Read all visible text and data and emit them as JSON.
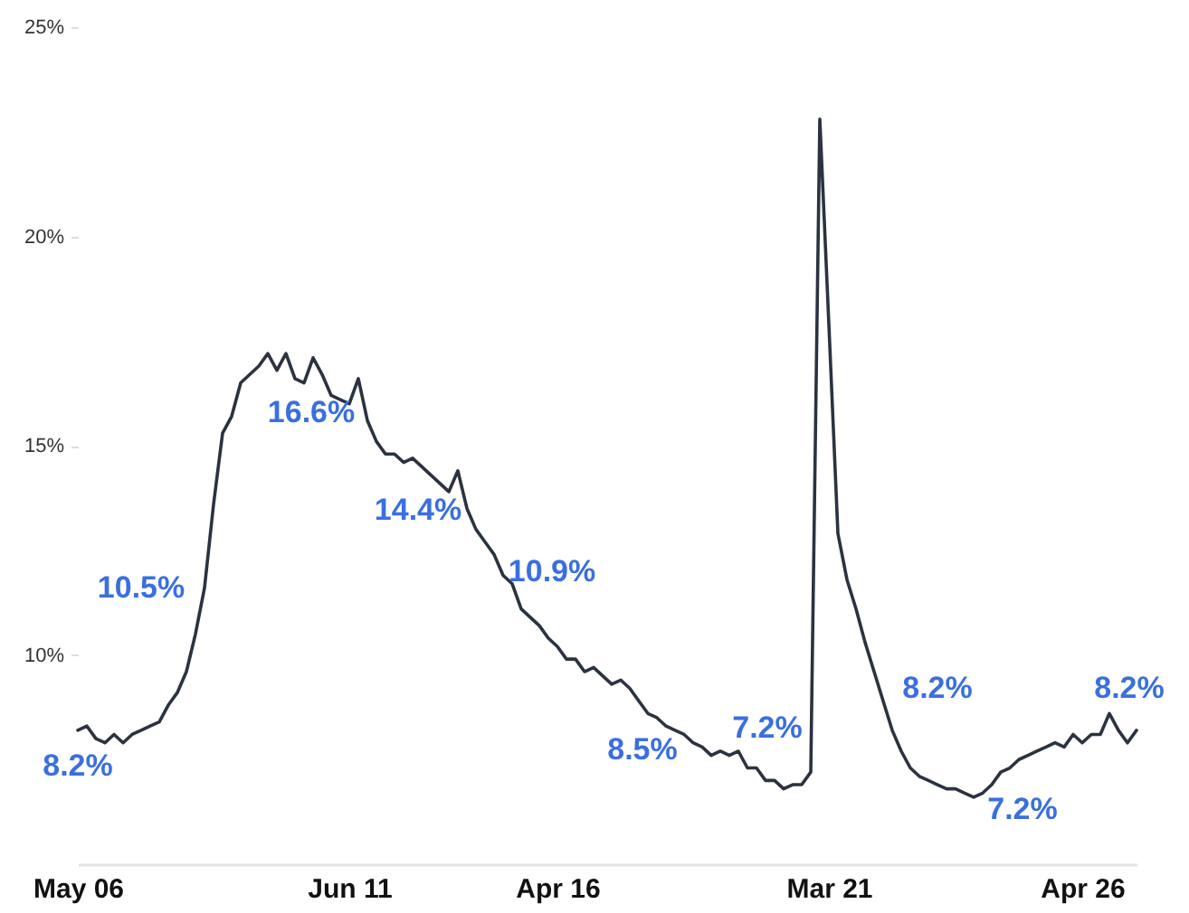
{
  "chart_data": {
    "type": "line",
    "categories": [
      "May 06",
      null,
      null,
      null,
      null,
      null,
      null,
      null,
      null,
      null,
      null,
      null,
      null,
      null,
      null,
      null,
      null,
      null,
      null,
      null,
      null,
      null,
      null,
      null,
      null,
      null,
      null,
      null,
      null,
      null,
      "Jun 11",
      null,
      null,
      null,
      null,
      null,
      null,
      null,
      null,
      null,
      null,
      null,
      null,
      null,
      null,
      null,
      null,
      null,
      null,
      null,
      null,
      null,
      null,
      "Apr 16",
      null,
      null,
      null,
      null,
      null,
      null,
      null,
      null,
      null,
      null,
      null,
      null,
      null,
      null,
      null,
      null,
      null,
      null,
      null,
      null,
      null,
      null,
      null,
      null,
      null,
      null,
      null,
      null,
      null,
      "Mar 21",
      null,
      null,
      null,
      null,
      null,
      null,
      null,
      null,
      null,
      null,
      null,
      null,
      null,
      null,
      null,
      null,
      null,
      null,
      null,
      null,
      null,
      null,
      null,
      null,
      null,
      null,
      null,
      "Apr 26",
      null,
      null,
      null,
      null,
      null,
      null
    ],
    "series": [
      {
        "color": "#2b3340",
        "values": [
          8.2,
          8.3,
          8.0,
          7.9,
          8.1,
          7.9,
          8.1,
          8.2,
          8.3,
          8.4,
          8.8,
          9.1,
          9.6,
          10.5,
          11.6,
          13.6,
          15.3,
          15.7,
          16.5,
          16.7,
          16.9,
          17.2,
          16.8,
          17.2,
          16.6,
          16.5,
          17.1,
          16.7,
          16.2,
          16.1,
          16.0,
          16.6,
          15.6,
          15.1,
          14.8,
          14.8,
          14.6,
          14.7,
          14.5,
          14.3,
          14.1,
          13.9,
          14.4,
          13.5,
          13.0,
          12.7,
          12.4,
          11.9,
          11.7,
          11.1,
          10.9,
          10.7,
          10.4,
          10.2,
          9.9,
          9.9,
          9.6,
          9.7,
          9.5,
          9.3,
          9.4,
          9.2,
          8.9,
          8.6,
          8.5,
          8.3,
          8.2,
          8.1,
          7.9,
          7.8,
          7.6,
          7.7,
          7.6,
          7.7,
          7.3,
          7.3,
          7.0,
          7.0,
          6.8,
          6.9,
          6.9,
          7.2,
          22.8,
          17.9,
          12.9,
          11.8,
          11.1,
          10.3,
          9.6,
          8.9,
          8.2,
          7.7,
          7.3,
          7.1,
          7.0,
          6.9,
          6.8,
          6.8,
          6.7,
          6.6,
          6.7,
          6.9,
          7.2,
          7.3,
          7.5,
          7.6,
          7.7,
          7.8,
          7.9,
          7.8,
          8.1,
          7.9,
          8.1,
          8.1,
          8.6,
          8.2,
          7.9,
          8.2
        ],
        "value_labels": [
          "8.2%",
          null,
          null,
          null,
          null,
          null,
          null,
          null,
          null,
          null,
          null,
          null,
          null,
          "10.5%",
          null,
          null,
          null,
          null,
          null,
          null,
          null,
          null,
          null,
          null,
          null,
          null,
          null,
          null,
          null,
          null,
          null,
          "16.6%",
          null,
          null,
          null,
          null,
          null,
          null,
          null,
          null,
          null,
          null,
          "14.4%",
          null,
          null,
          null,
          null,
          null,
          null,
          null,
          "10.9%",
          null,
          null,
          null,
          null,
          null,
          null,
          null,
          null,
          null,
          null,
          null,
          null,
          null,
          "8.5%",
          null,
          null,
          null,
          null,
          null,
          null,
          null,
          null,
          null,
          null,
          null,
          null,
          null,
          null,
          null,
          null,
          "7.2%",
          null,
          null,
          null,
          null,
          null,
          null,
          null,
          null,
          "8.2%",
          null,
          null,
          null,
          null,
          null,
          null,
          null,
          null,
          null,
          null,
          null,
          "7.2%",
          null,
          null,
          null,
          null,
          null,
          null,
          null,
          null,
          null,
          null,
          null,
          null,
          null,
          null,
          "8.2%"
        ]
      }
    ],
    "ylim": [
      5,
      25
    ],
    "yticks": [
      {
        "value": 10,
        "label": "10%"
      },
      {
        "value": 15,
        "label": "15%"
      },
      {
        "value": 20,
        "label": "20%"
      },
      {
        "value": 25,
        "label": "25%"
      }
    ],
    "grid": false
  }
}
